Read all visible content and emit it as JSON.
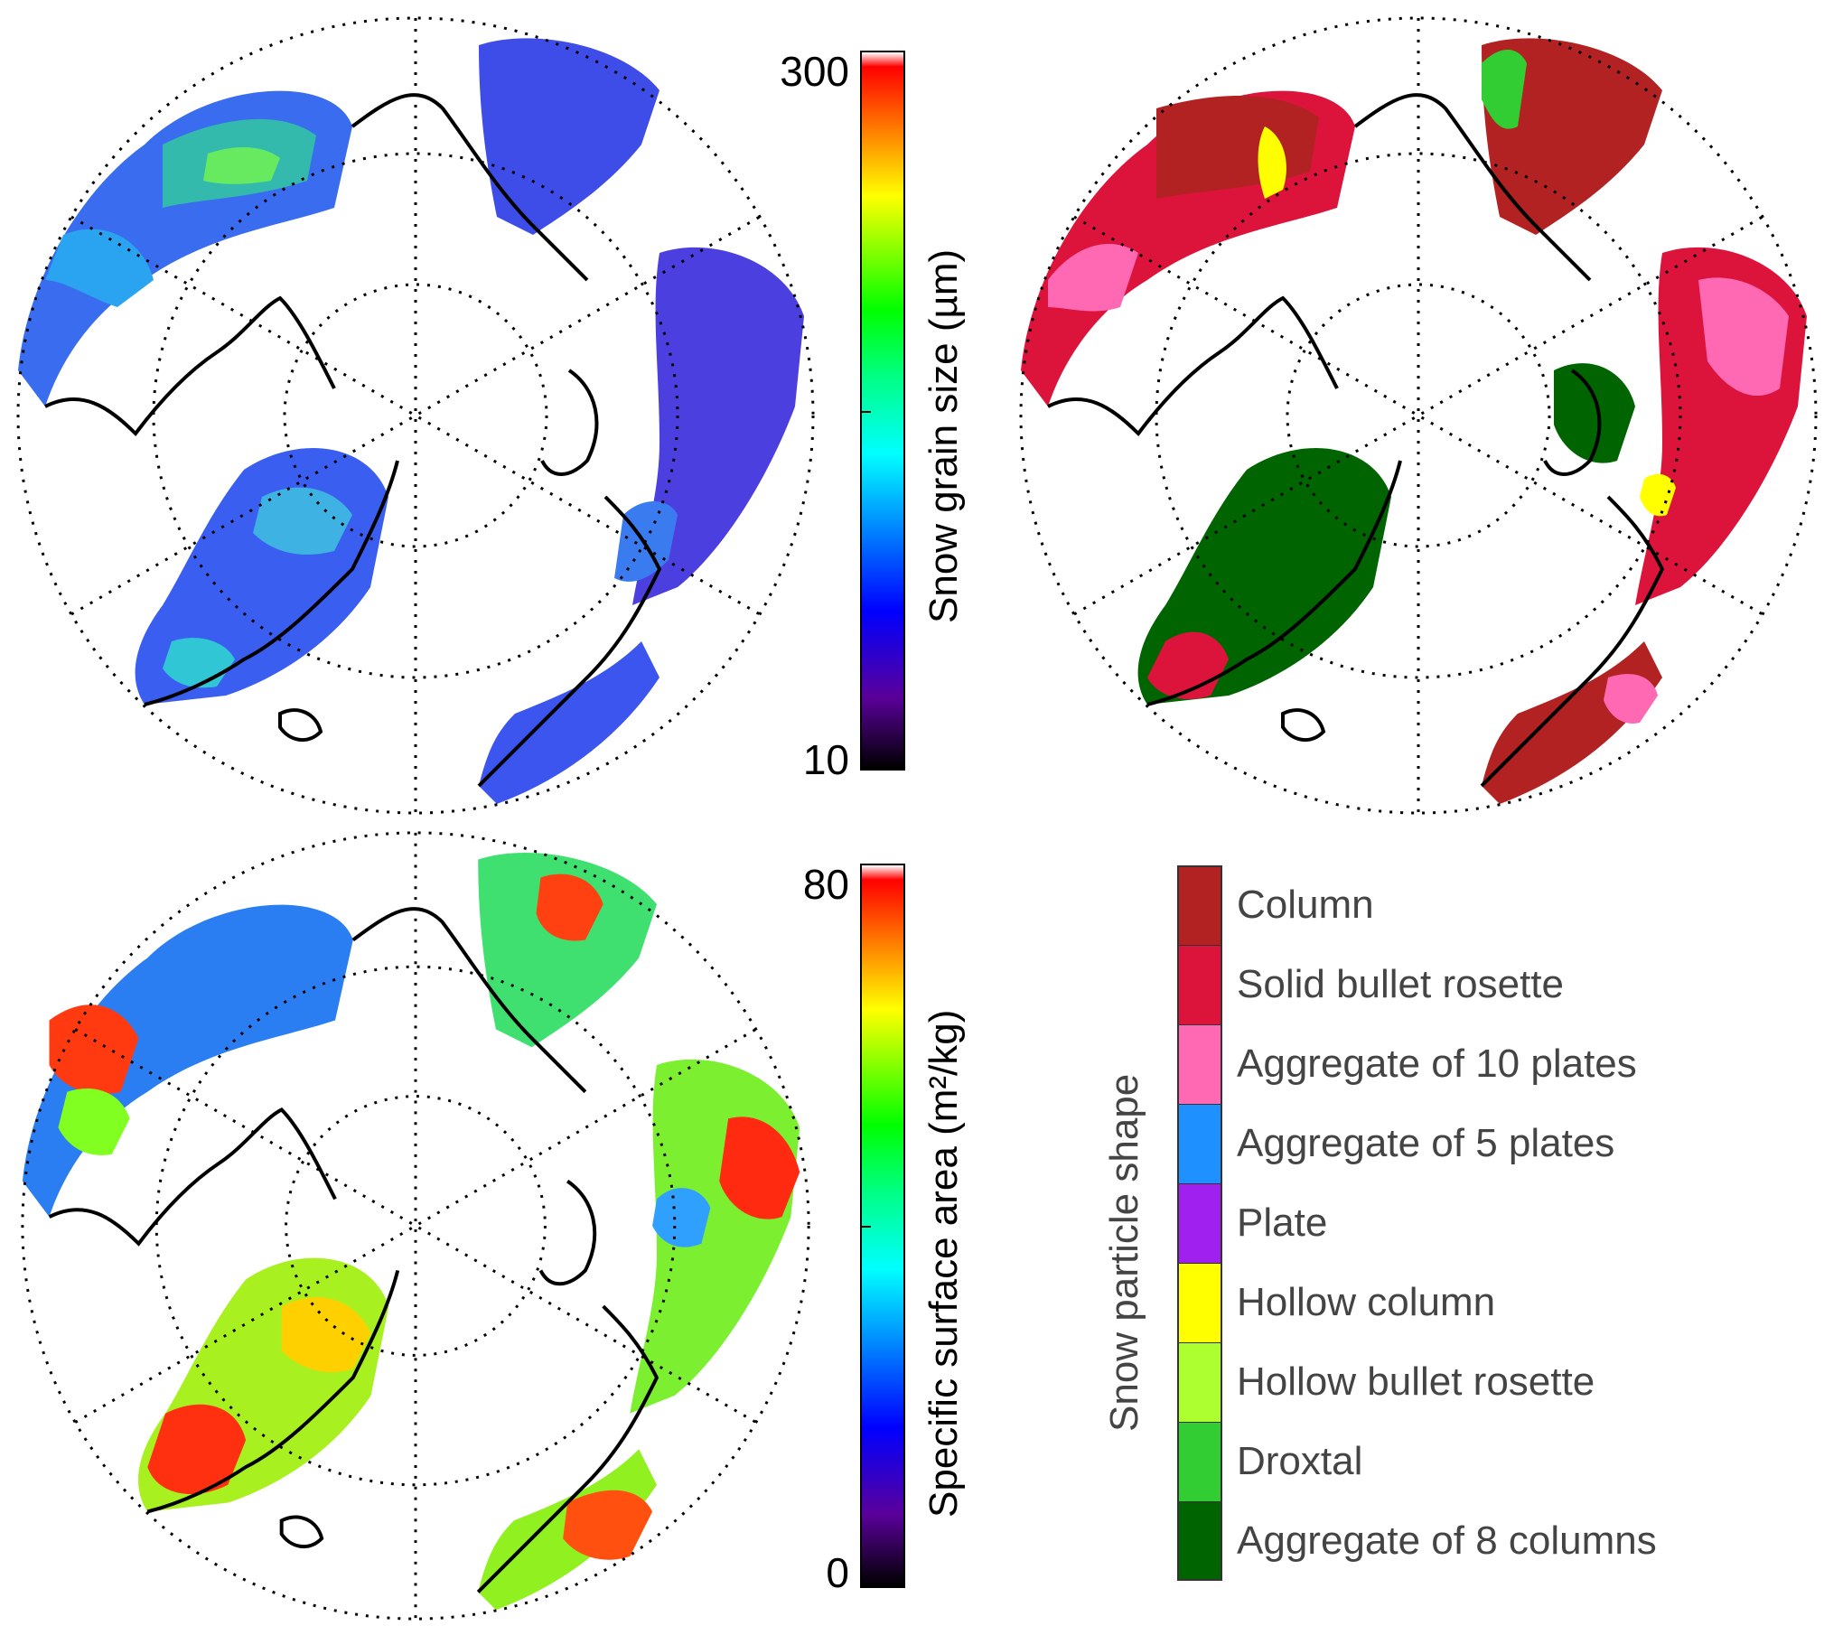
{
  "panels": [
    {
      "id": "grain-size",
      "kind": "continuous",
      "colorbar": {
        "max_label": "300",
        "min_label": "10",
        "label": "Snow grain size (µm)"
      }
    },
    {
      "id": "particle-shape",
      "kind": "categorical"
    },
    {
      "id": "ssa",
      "kind": "continuous",
      "colorbar": {
        "max_label": "80",
        "min_label": "0",
        "label": "Specific surface area (m²/kg)"
      }
    }
  ],
  "legend": {
    "title": "Snow particle shape",
    "items": [
      {
        "label": "Column",
        "color": "#b22222"
      },
      {
        "label": "Solid bullet rosette",
        "color": "#dc143c"
      },
      {
        "label": "Aggregate of 10 plates",
        "color": "#ff69b4"
      },
      {
        "label": "Aggregate of 5 plates",
        "color": "#1e90ff"
      },
      {
        "label": "Plate",
        "color": "#a020f0"
      },
      {
        "label": "Hollow column",
        "color": "#ffff00"
      },
      {
        "label": "Hollow bullet rosette",
        "color": "#adff2f"
      },
      {
        "label": "Droxtal",
        "color": "#32cd32"
      },
      {
        "label": "Aggregate of 8 columns",
        "color": "#006400"
      }
    ]
  },
  "colors": {
    "jet": [
      "#000000",
      "#5a009a",
      "#0000ff",
      "#0080ff",
      "#00ffff",
      "#00ff80",
      "#00ff00",
      "#80ff00",
      "#ffff00",
      "#ff8000",
      "#ff0000"
    ],
    "coast": "#000000",
    "grid": "#000000"
  }
}
